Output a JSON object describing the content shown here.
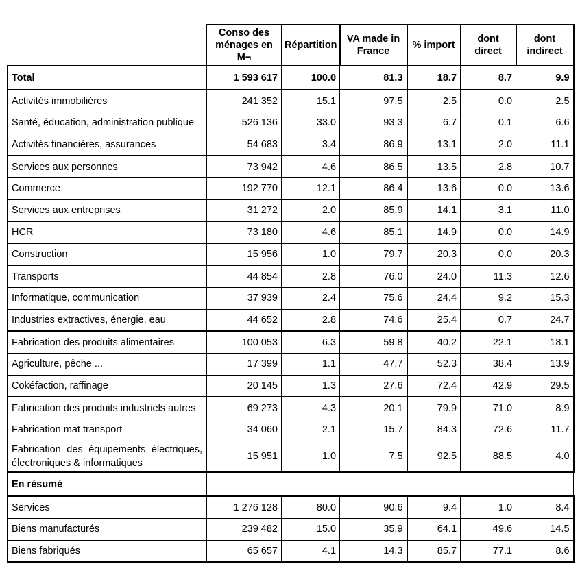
{
  "table": {
    "headers": [
      "Conso des ménages en M¬",
      "Répartition",
      "VA made in France",
      "% import",
      "dont direct",
      "dont indirect"
    ],
    "rows": [
      {
        "label": "Total",
        "values": [
          "1 593 617",
          "100.0",
          "81.3",
          "18.7",
          "8.7",
          "9.9"
        ],
        "style": "total"
      },
      {
        "label": "Activités immobilières",
        "values": [
          "241 352",
          "15.1",
          "97.5",
          "2.5",
          "0.0",
          "2.5"
        ]
      },
      {
        "label": "Santé, éducation, administration publique",
        "values": [
          "526 136",
          "33.0",
          "93.3",
          "6.7",
          "0.1",
          "6.6"
        ]
      },
      {
        "label": "Activités financières, assurances",
        "values": [
          "54 683",
          "3.4",
          "86.9",
          "13.1",
          "2.0",
          "11.1"
        ],
        "divider_after": true
      },
      {
        "label": "Services aux personnes",
        "values": [
          "73 942",
          "4.6",
          "86.5",
          "13.5",
          "2.8",
          "10.7"
        ]
      },
      {
        "label": "Commerce",
        "values": [
          "192 770",
          "12.1",
          "86.4",
          "13.6",
          "0.0",
          "13.6"
        ]
      },
      {
        "label": "Services aux entreprises",
        "values": [
          "31 272",
          "2.0",
          "85.9",
          "14.1",
          "3.1",
          "11.0"
        ]
      },
      {
        "label": "HCR",
        "values": [
          "73 180",
          "4.6",
          "85.1",
          "14.9",
          "0.0",
          "14.9"
        ],
        "divider_after": true
      },
      {
        "label": "Construction",
        "values": [
          "15 956",
          "1.0",
          "79.7",
          "20.3",
          "0.0",
          "20.3"
        ],
        "divider_after": true
      },
      {
        "label": "Transports",
        "values": [
          "44 854",
          "2.8",
          "76.0",
          "24.0",
          "11.3",
          "12.6"
        ]
      },
      {
        "label": "Informatique, communication",
        "values": [
          "37 939",
          "2.4",
          "75.6",
          "24.4",
          "9.2",
          "15.3"
        ]
      },
      {
        "label": "Industries extractives, énergie, eau",
        "values": [
          "44 652",
          "2.8",
          "74.6",
          "25.4",
          "0.7",
          "24.7"
        ],
        "divider_after": true
      },
      {
        "label": "Fabrication des produits alimentaires",
        "values": [
          "100 053",
          "6.3",
          "59.8",
          "40.2",
          "22.1",
          "18.1"
        ]
      },
      {
        "label": "Agriculture, pêche ...",
        "values": [
          "17 399",
          "1.1",
          "47.7",
          "52.3",
          "38.4",
          "13.9"
        ]
      },
      {
        "label": "Cokéfaction, raffinage",
        "values": [
          "20 145",
          "1.3",
          "27.6",
          "72.4",
          "42.9",
          "29.5"
        ],
        "divider_after": true
      },
      {
        "label": "Fabrication des produits industriels autres",
        "values": [
          "69 273",
          "4.3",
          "20.1",
          "79.9",
          "71.0",
          "8.9"
        ]
      },
      {
        "label": "Fabrication mat transport",
        "values": [
          "34 060",
          "2.1",
          "15.7",
          "84.3",
          "72.6",
          "11.7"
        ]
      },
      {
        "label": "Fabrication des équipements électriques, électroniques & informatiques",
        "values": [
          "15 951",
          "1.0",
          "7.5",
          "92.5",
          "88.5",
          "4.0"
        ],
        "style": "tall",
        "divider_after": true
      },
      {
        "label": "En résumé",
        "values": [],
        "style": "section"
      },
      {
        "label": "Services",
        "values": [
          "1 276 128",
          "80.0",
          "90.6",
          "9.4",
          "1.0",
          "8.4"
        ]
      },
      {
        "label": "Biens manufacturés",
        "values": [
          "239 482",
          "15.0",
          "35.9",
          "64.1",
          "49.6",
          "14.5"
        ]
      },
      {
        "label": "Biens fabriqués",
        "values": [
          "65 657",
          "4.1",
          "14.3",
          "85.7",
          "77.1",
          "8.6"
        ]
      }
    ]
  }
}
